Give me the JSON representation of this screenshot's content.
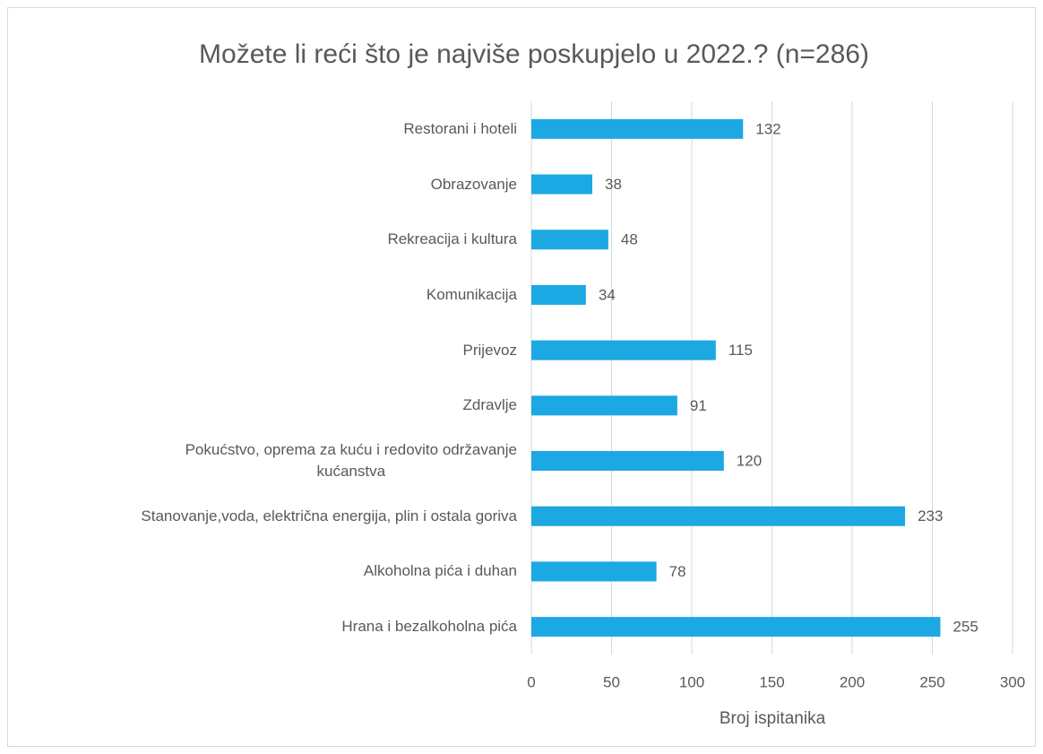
{
  "chart_data": {
    "type": "bar",
    "orientation": "horizontal",
    "title": "Možete li reći što je najviše poskupjelo u 2022.? (n=286)",
    "x_label": "Broj ispitanika",
    "categories": [
      "Restorani i hoteli",
      "Obrazovanje",
      "Rekreacija i kultura",
      "Komunikacija",
      "Prijevoz",
      "Zdravlje",
      "Pokućstvo, oprema za kuću i redovito održavanje\nkućanstva",
      "Stanovanje,voda, električna energija, plin i ostala goriva",
      "Alkoholna pića i duhan",
      "Hrana i bezalkoholna pića"
    ],
    "values": [
      132,
      38,
      48,
      34,
      115,
      91,
      120,
      233,
      78,
      255
    ],
    "color": "#1ca8e3",
    "xlim": [
      0,
      300
    ],
    "xticks": [
      0,
      50,
      100,
      150,
      200,
      250,
      300
    ],
    "grid": true
  }
}
